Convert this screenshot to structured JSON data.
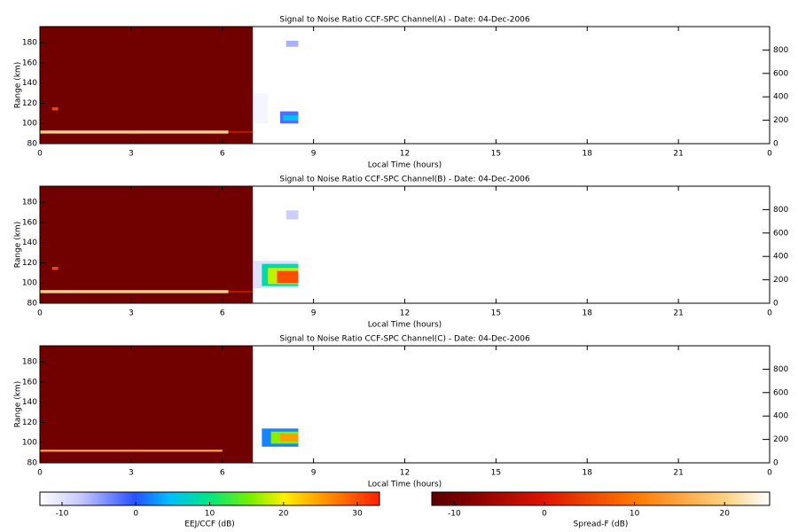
{
  "chart_data": [
    {
      "type": "heatmap",
      "title": "Signal to Noise Ratio CCF-SPC Channel(A) - Date: 04-Dec-2006",
      "xlabel": "Local Time (hours)",
      "ylabel": "Range (km)",
      "xlim": [
        0,
        24
      ],
      "xticks": [
        0,
        3,
        6,
        9,
        12,
        15,
        18,
        21,
        {
          "value": 24,
          "label": "0"
        }
      ],
      "ylim": [
        80,
        196
      ],
      "yticks": [
        80,
        100,
        120,
        140,
        160,
        180
      ],
      "y2lim": [
        0,
        1000
      ],
      "y2ticks": [
        0,
        200,
        400,
        600,
        800
      ],
      "spread_f_blocks": [
        {
          "x": [
            0,
            7
          ],
          "y": [
            80,
            196
          ],
          "value": -10
        },
        {
          "x": [
            0,
            6.2
          ],
          "y": [
            90,
            93
          ],
          "value": 20
        },
        {
          "x": [
            0.4,
            0.6
          ],
          "y": [
            113,
            116
          ],
          "value": 5
        },
        {
          "x": [
            6.2,
            7
          ],
          "y": [
            91,
            92
          ],
          "value": 2
        }
      ],
      "eej_blocks": [
        {
          "x": [
            7.0,
            7.5
          ],
          "y": [
            100,
            130
          ],
          "value": -12
        },
        {
          "x": [
            7.9,
            8.5
          ],
          "y": [
            100,
            112
          ],
          "value": -2
        },
        {
          "x": [
            8.0,
            8.5
          ],
          "y": [
            103,
            108
          ],
          "value": 5
        },
        {
          "x": [
            8.1,
            8.5
          ],
          "y": [
            176,
            182
          ],
          "value": -6
        }
      ]
    },
    {
      "type": "heatmap",
      "title": "Signal to Noise Ratio CCF-SPC Channel(B) - Date: 04-Dec-2006",
      "xlabel": "Local Time (hours)",
      "ylabel": "Range (km)",
      "xlim": [
        0,
        24
      ],
      "xticks": [
        0,
        3,
        6,
        9,
        12,
        15,
        18,
        21,
        {
          "value": 24,
          "label": "0"
        }
      ],
      "ylim": [
        80,
        196
      ],
      "yticks": [
        80,
        100,
        120,
        140,
        160,
        180
      ],
      "y2lim": [
        0,
        1000
      ],
      "y2ticks": [
        0,
        200,
        400,
        600,
        800
      ],
      "spread_f_blocks": [
        {
          "x": [
            0,
            7
          ],
          "y": [
            80,
            196
          ],
          "value": -10
        },
        {
          "x": [
            0,
            6.2
          ],
          "y": [
            90,
            93
          ],
          "value": 20
        },
        {
          "x": [
            0.4,
            0.6
          ],
          "y": [
            113,
            116
          ],
          "value": 5
        },
        {
          "x": [
            6.2,
            7
          ],
          "y": [
            91,
            92
          ],
          "value": 2
        }
      ],
      "eej_blocks": [
        {
          "x": [
            7.0,
            8.5
          ],
          "y": [
            95,
            122
          ],
          "value": -10
        },
        {
          "x": [
            7.3,
            8.5
          ],
          "y": [
            97,
            119
          ],
          "value": 8
        },
        {
          "x": [
            7.5,
            8.5
          ],
          "y": [
            99,
            115
          ],
          "value": 18
        },
        {
          "x": [
            7.8,
            8.5
          ],
          "y": [
            100,
            112
          ],
          "value": 30
        },
        {
          "x": [
            8.1,
            8.5
          ],
          "y": [
            163,
            172
          ],
          "value": -8
        }
      ]
    },
    {
      "type": "heatmap",
      "title": "Signal to Noise Ratio CCF-SPC Channel(C) - Date: 04-Dec-2006",
      "xlabel": "Local Time (hours)",
      "ylabel": "Range (km)",
      "xlim": [
        0,
        24
      ],
      "xticks": [
        0,
        3,
        6,
        9,
        12,
        15,
        18,
        21,
        {
          "value": 24,
          "label": "0"
        }
      ],
      "ylim": [
        80,
        196
      ],
      "yticks": [
        80,
        100,
        120,
        140,
        160,
        180
      ],
      "y2lim": [
        0,
        1000
      ],
      "y2ticks": [
        0,
        200,
        400,
        600,
        800
      ],
      "spread_f_blocks": [
        {
          "x": [
            0,
            7
          ],
          "y": [
            80,
            196
          ],
          "value": -10
        },
        {
          "x": [
            0,
            6
          ],
          "y": [
            91,
            93
          ],
          "value": 15
        }
      ],
      "eej_blocks": [
        {
          "x": [
            7.3,
            8.5
          ],
          "y": [
            96,
            114
          ],
          "value": 2
        },
        {
          "x": [
            7.6,
            8.5
          ],
          "y": [
            99,
            111
          ],
          "value": 16
        },
        {
          "x": [
            7.9,
            8.5
          ],
          "y": [
            101,
            109
          ],
          "value": 25
        }
      ]
    }
  ],
  "colorbars": {
    "eej": {
      "label": "EEJ/CCF (dB)",
      "lim": [
        -13,
        33
      ],
      "ticks": [
        -10,
        0,
        10,
        20,
        30
      ]
    },
    "spread_f": {
      "label": "Spread-F (dB)",
      "lim": [
        -12.5,
        25
      ],
      "ticks": [
        -10,
        0,
        10,
        20
      ]
    }
  }
}
